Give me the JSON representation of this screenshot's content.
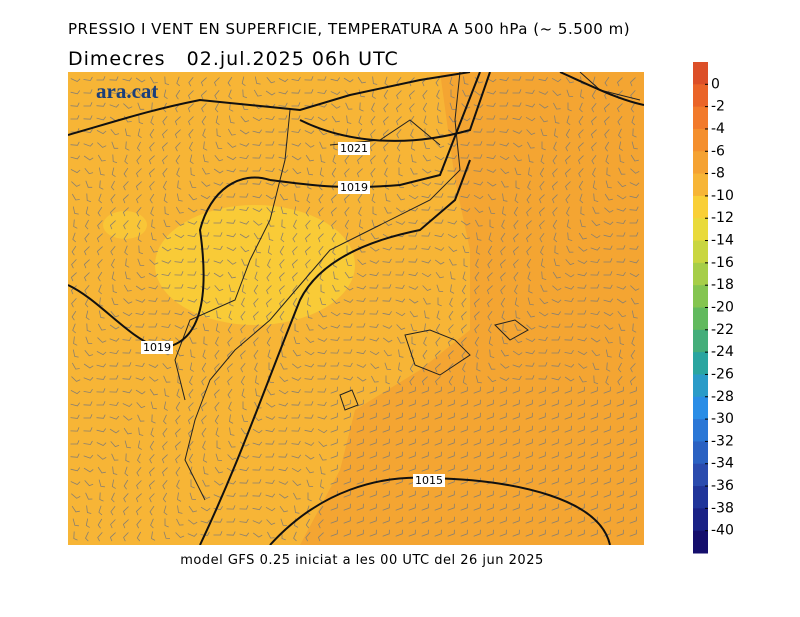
{
  "header": {
    "title": "PRESSIO I VENT EN SUPERFICIE, TEMPERATURA A 500 hPa (~ 5.500 m)",
    "subtitle": "Dimecres   02.jul.2025 06h UTC"
  },
  "logo": "ara.cat",
  "footer": "model GFS 0.25 iniciat a les 00 UTC del 26 jun 2025",
  "isobars": [
    {
      "label": "1021"
    },
    {
      "label": "1019"
    },
    {
      "label": "1019"
    },
    {
      "label": "1015"
    }
  ],
  "colorbar": {
    "ticks": [
      0,
      -2,
      -4,
      -6,
      -8,
      -10,
      -12,
      -14,
      -16,
      -18,
      -20,
      -22,
      -24,
      -26,
      -28,
      -30,
      -32,
      -34,
      -36,
      -38,
      -40
    ],
    "colors": [
      "#dc4f28",
      "#ea6428",
      "#f27a2b",
      "#f48f2e",
      "#f5a232",
      "#f7b536",
      "#f9cf37",
      "#e9da3b",
      "#c9d640",
      "#a6ce48",
      "#84c550",
      "#62ba5e",
      "#44ae7a",
      "#2aa5a0",
      "#2a9bc8",
      "#2a8de6",
      "#2a77d6",
      "#2a61c2",
      "#2a4bae",
      "#20359a",
      "#1a2286",
      "#140e6c"
    ]
  }
}
